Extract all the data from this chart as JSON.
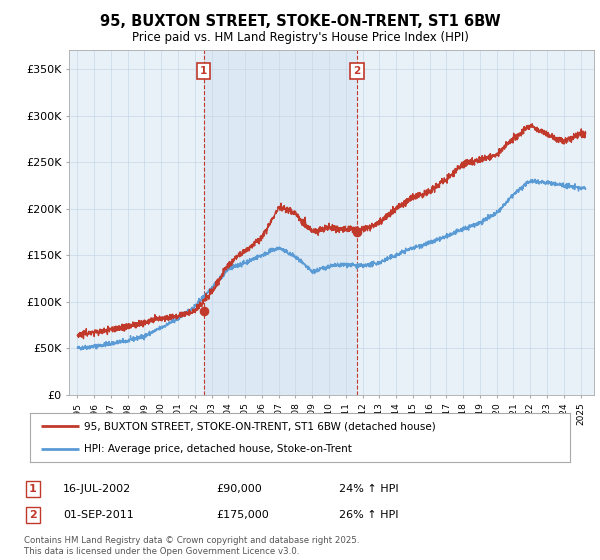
{
  "title": "95, BUXTON STREET, STOKE-ON-TRENT, ST1 6BW",
  "subtitle": "Price paid vs. HM Land Registry's House Price Index (HPI)",
  "ylabel_ticks": [
    "£0",
    "£50K",
    "£100K",
    "£150K",
    "£200K",
    "£250K",
    "£300K",
    "£350K"
  ],
  "ylim": [
    0,
    370000
  ],
  "sale1_date": 2002.54,
  "sale1_price": 90000,
  "sale1_label": "1",
  "sale2_date": 2011.67,
  "sale2_price": 175000,
  "sale2_label": "2",
  "hpi_color": "#5b9bd5",
  "price_color": "#c0392b",
  "shade_color": "#dce9f5",
  "plot_bg": "#e8f0f8",
  "legend_entry1": "95, BUXTON STREET, STOKE-ON-TRENT, ST1 6BW (detached house)",
  "legend_entry2": "HPI: Average price, detached house, Stoke-on-Trent",
  "table_row1_num": "1",
  "table_row1_date": "16-JUL-2002",
  "table_row1_price": "£90,000",
  "table_row1_hpi": "24% ↑ HPI",
  "table_row2_num": "2",
  "table_row2_date": "01-SEP-2011",
  "table_row2_price": "£175,000",
  "table_row2_hpi": "26% ↑ HPI",
  "footer": "Contains HM Land Registry data © Crown copyright and database right 2025.\nThis data is licensed under the Open Government Licence v3.0.",
  "grid_color": "#c8d8e8"
}
